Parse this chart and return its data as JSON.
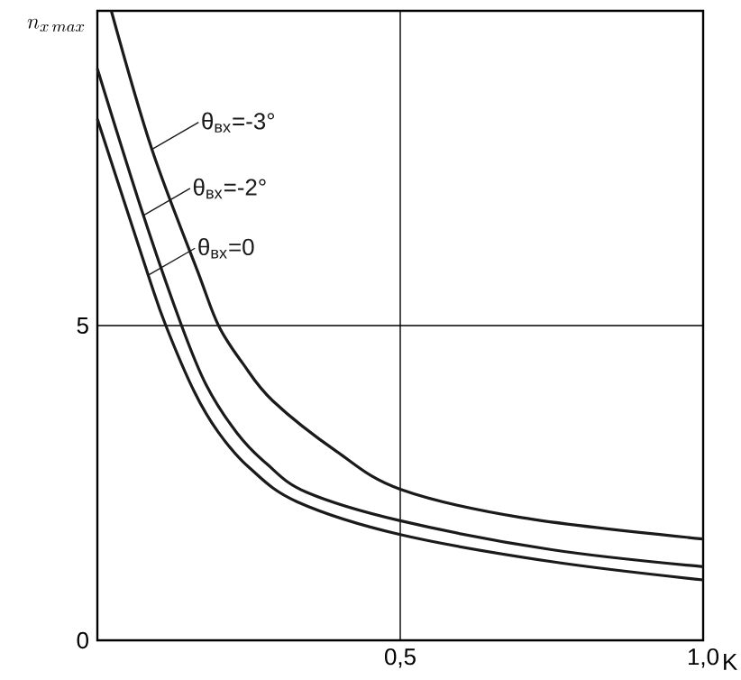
{
  "chart_data": {
    "type": "line",
    "xlabel": "K",
    "ylabel": "n_{x\\,max}",
    "xlim": [
      0,
      1.0
    ],
    "ylim": [
      0,
      10
    ],
    "xticks": [
      {
        "value": 0.5,
        "label": "0,5"
      },
      {
        "value": 1.0,
        "label": "1,0"
      }
    ],
    "yticks": [
      0,
      5
    ],
    "grid": true,
    "legend": "top left",
    "line_style": "solid",
    "marker": "none",
    "series": [
      {
        "name": "θ$_{вх}$=-3°",
        "color": "#1a1a1a",
        "x": [
          0.023,
          0.09,
          0.166,
          0.2,
          0.24,
          0.29,
          0.395,
          0.5,
          0.7,
          1.0
        ],
        "values": [
          10,
          7.8,
          5.85,
          5.0,
          4.4,
          3.8,
          3.0,
          2.4,
          1.95,
          1.61
        ]
      },
      {
        "name": "θ$_{вх}$=-2°",
        "color": "#1a1a1a",
        "x": [
          0,
          0.076,
          0.139,
          0.18,
          0.23,
          0.28,
          0.346,
          0.5,
          0.75,
          1.0
        ],
        "values": [
          9.08,
          6.75,
          5.0,
          4.05,
          3.3,
          2.8,
          2.35,
          1.9,
          1.44,
          1.17
        ]
      },
      {
        "name": "θ$_{вх}$=0",
        "color": "#1a1a1a",
        "x": [
          0,
          0.084,
          0.113,
          0.16,
          0.2,
          0.25,
          0.33,
          0.5,
          0.75,
          1.0
        ],
        "values": [
          8.28,
          5.8,
          5.0,
          3.95,
          3.3,
          2.75,
          2.2,
          1.68,
          1.25,
          0.96
        ]
      }
    ]
  }
}
